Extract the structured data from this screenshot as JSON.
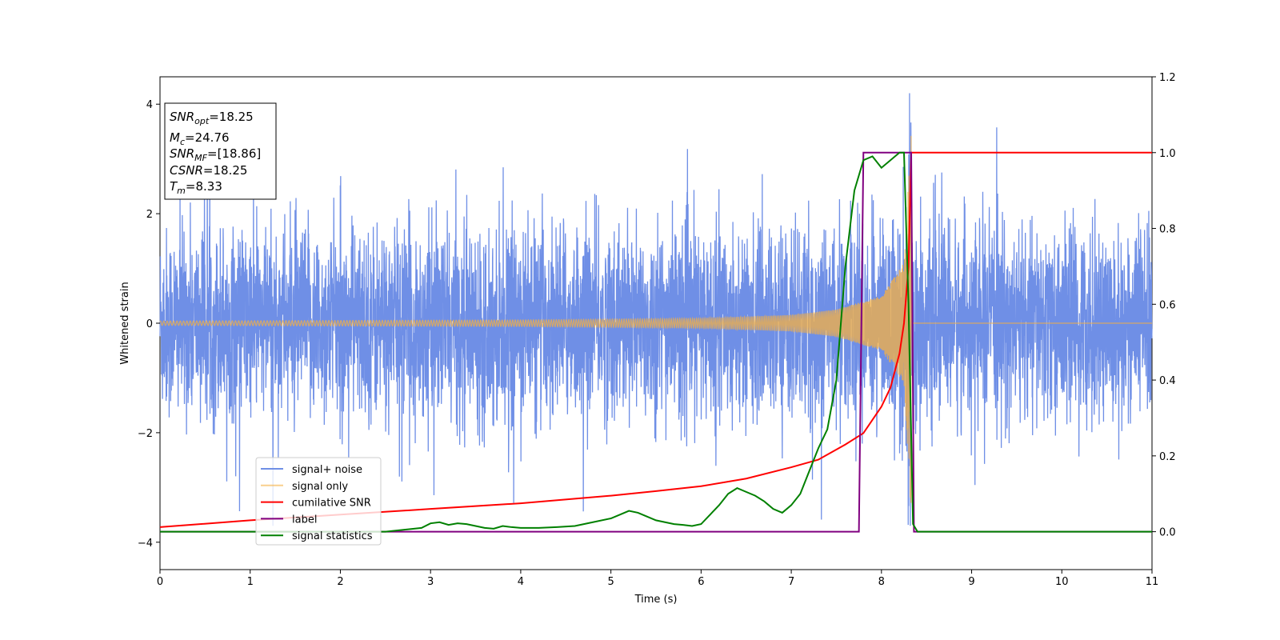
{
  "chart_data": {
    "type": "line",
    "xlabel": "Time (s)",
    "ylabel": "Whitened strain",
    "xlim": [
      0,
      11
    ],
    "ylim_left": [
      -4.5,
      4.5
    ],
    "ylim_right": [
      -0.1,
      1.2
    ],
    "x_ticks": [
      "0",
      "1",
      "2",
      "3",
      "4",
      "5",
      "6",
      "7",
      "8",
      "9",
      "10",
      "11"
    ],
    "y_ticks_left": [
      "4",
      "2",
      "0",
      "−2",
      "−4"
    ],
    "y_ticks_right": [
      "1.2",
      "1.0",
      "0.8",
      "0.6",
      "0.4",
      "0.2",
      "0.0"
    ],
    "grid": false,
    "legend_location": "lower-left",
    "info_box": {
      "snr_opt_label": "SNR",
      "snr_opt_sub": "opt",
      "snr_opt_value": "=18.25",
      "mc_label": "M",
      "mc_sub": "c",
      "mc_value": "=24.76",
      "snr_mf_label": "SNR",
      "snr_mf_sub": "MF",
      "snr_mf_value": "=[18.86]",
      "csnr": "CSNR=18.25",
      "tm_label": "T",
      "tm_sub": "m",
      "tm_value": "=8.33"
    },
    "merger_time": 8.33,
    "series": [
      {
        "name": "signal+ noise",
        "axis": "left",
        "color": "#6f8fe6",
        "noise_std": 0.85,
        "spike_range": [
          -3.7,
          4.2
        ]
      },
      {
        "name": "signal only",
        "axis": "left",
        "color": "#f5b041",
        "envelope": [
          [
            0,
            0.04
          ],
          [
            4,
            0.06
          ],
          [
            6,
            0.09
          ],
          [
            7,
            0.15
          ],
          [
            7.5,
            0.25
          ],
          [
            8.0,
            0.5
          ],
          [
            8.25,
            1.1
          ],
          [
            8.33,
            3.5
          ]
        ]
      },
      {
        "name": "cumilative SNR",
        "axis": "right",
        "color": "#ff0000",
        "x": [
          0,
          1,
          2,
          3,
          4,
          5,
          5.5,
          6,
          6.5,
          7,
          7.3,
          7.6,
          7.8,
          8.0,
          8.1,
          8.2,
          8.25,
          8.3,
          8.33,
          8.35,
          9,
          10,
          11
        ],
        "y": [
          0.012,
          0.03,
          0.045,
          0.06,
          0.075,
          0.095,
          0.107,
          0.12,
          0.14,
          0.17,
          0.19,
          0.23,
          0.26,
          0.33,
          0.38,
          0.47,
          0.55,
          0.7,
          1.0,
          1.0,
          1.0,
          1.0,
          1.0
        ]
      },
      {
        "name": "label",
        "axis": "right",
        "color": "#800080",
        "x": [
          0,
          7.75,
          7.8,
          8.33,
          8.36,
          11
        ],
        "y": [
          0,
          0,
          1,
          1,
          0,
          0
        ]
      },
      {
        "name": "signal statistics",
        "axis": "right",
        "color": "#008000",
        "x": [
          0,
          2.5,
          2.9,
          3.0,
          3.1,
          3.2,
          3.3,
          3.4,
          3.5,
          3.6,
          3.7,
          3.8,
          3.9,
          4.0,
          4.2,
          4.4,
          4.6,
          4.8,
          5.0,
          5.1,
          5.2,
          5.3,
          5.4,
          5.5,
          5.6,
          5.7,
          5.8,
          5.9,
          6.0,
          6.1,
          6.2,
          6.3,
          6.4,
          6.5,
          6.6,
          6.7,
          6.8,
          6.9,
          7.0,
          7.1,
          7.2,
          7.3,
          7.4,
          7.5,
          7.6,
          7.7,
          7.8,
          7.9,
          8.0,
          8.1,
          8.2,
          8.25,
          8.3,
          8.35,
          8.4,
          11
        ],
        "y": [
          0,
          0,
          0.01,
          0.022,
          0.025,
          0.018,
          0.022,
          0.02,
          0.015,
          0.01,
          0.008,
          0.015,
          0.012,
          0.01,
          0.01,
          0.012,
          0.015,
          0.025,
          0.035,
          0.045,
          0.055,
          0.05,
          0.04,
          0.03,
          0.025,
          0.02,
          0.018,
          0.015,
          0.02,
          0.045,
          0.07,
          0.1,
          0.115,
          0.105,
          0.095,
          0.08,
          0.06,
          0.05,
          0.07,
          0.1,
          0.16,
          0.22,
          0.27,
          0.4,
          0.7,
          0.9,
          0.98,
          0.99,
          0.96,
          0.98,
          1.0,
          1.0,
          0.6,
          0.02,
          0.0,
          0.0
        ]
      }
    ]
  }
}
